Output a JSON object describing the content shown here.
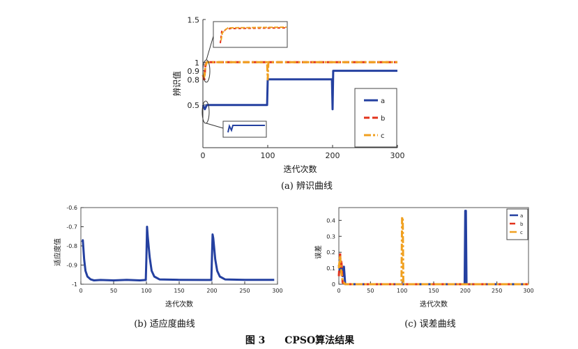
{
  "colors": {
    "a": "#2440a0",
    "b": "#e2331c",
    "c": "#f0a020"
  },
  "figure_caption": {
    "label": "图 3",
    "title": "CPSO算法结果"
  },
  "chart_data": [
    {
      "id": "a",
      "type": "line",
      "caption": "(a) 辨识曲线",
      "xlabel": "迭代次数",
      "ylabel": "辨识值",
      "xlim": [
        0,
        300
      ],
      "ylim": [
        0,
        1.5
      ],
      "xticks": [
        0,
        100,
        200,
        300
      ],
      "yticks": [
        0.5,
        0.8,
        0.9,
        1,
        1.5
      ],
      "ytick_labels": [
        "0.5",
        "0.8",
        "0.9",
        "1",
        "1.5"
      ],
      "legend": [
        "a",
        "b",
        "c"
      ],
      "legend_position": "bottom-right",
      "series": [
        {
          "name": "a",
          "x": [
            0,
            3,
            6,
            99,
            100,
            199,
            200,
            201,
            300
          ],
          "y": [
            0.5,
            0.45,
            0.5,
            0.5,
            0.8,
            0.8,
            0.45,
            0.9,
            0.9
          ]
        },
        {
          "name": "b",
          "x": [
            0,
            2,
            4,
            6,
            100,
            300
          ],
          "y": [
            0.85,
            0.8,
            0.97,
            1.0,
            1.0,
            1.0
          ]
        },
        {
          "name": "c",
          "x": [
            0,
            2,
            4,
            6,
            99,
            100,
            101,
            102,
            300
          ],
          "y": [
            0.85,
            0.83,
            0.95,
            1.0,
            1.0,
            0.8,
            1.0,
            1.0,
            1.0
          ]
        }
      ]
    },
    {
      "id": "b",
      "type": "line",
      "caption": "(b) 适应度曲线",
      "xlabel": "迭代次数",
      "ylabel": "适应度值",
      "xlim": [
        0,
        300
      ],
      "ylim": [
        -1,
        -0.6
      ],
      "xticks": [
        0,
        50,
        100,
        150,
        200,
        250,
        300
      ],
      "yticks": [
        -1,
        -0.9,
        -0.8,
        -0.7,
        -0.6
      ],
      "ytick_labels": [
        "-1",
        "-0.9",
        "-0.8",
        "-0.7",
        "-0.6"
      ],
      "series": [
        {
          "name": "a",
          "x": [
            2,
            3,
            5,
            7,
            10,
            15,
            20,
            30,
            50,
            70,
            90,
            99,
            100,
            101,
            102,
            105,
            108,
            112,
            120,
            150,
            190,
            199,
            200,
            201,
            202,
            205,
            208,
            212,
            220,
            250,
            295
          ],
          "y": [
            -0.78,
            -0.77,
            -0.87,
            -0.93,
            -0.96,
            -0.975,
            -0.98,
            -0.978,
            -0.98,
            -0.977,
            -0.98,
            -0.978,
            -0.86,
            -0.7,
            -0.75,
            -0.86,
            -0.93,
            -0.96,
            -0.975,
            -0.977,
            -0.978,
            -0.978,
            -0.86,
            -0.74,
            -0.76,
            -0.87,
            -0.93,
            -0.96,
            -0.975,
            -0.977,
            -0.977
          ]
        }
      ]
    },
    {
      "id": "c",
      "type": "line",
      "caption": "(c) 误差曲线",
      "xlabel": "迭代次数",
      "ylabel": "误差",
      "xlim": [
        0,
        300
      ],
      "ylim": [
        0,
        0.48
      ],
      "xticks": [
        0,
        50,
        100,
        150,
        200,
        250,
        300
      ],
      "yticks": [
        0,
        0.1,
        0.2,
        0.3,
        0.4
      ],
      "ytick_labels": [
        "0",
        "0.1",
        "0.2",
        "0.3",
        "0.4"
      ],
      "legend": [
        "a",
        "b",
        "c"
      ],
      "legend_position": "top-right",
      "series": [
        {
          "name": "a",
          "x": [
            0,
            2,
            4,
            6,
            8,
            10,
            199,
            200,
            201,
            202,
            300
          ],
          "y": [
            0.12,
            0.08,
            0.12,
            0.05,
            0.11,
            0,
            0,
            0.46,
            0.46,
            0,
            0
          ]
        },
        {
          "name": "b",
          "x": [
            0,
            2,
            3,
            4,
            6,
            10,
            300
          ],
          "y": [
            0.05,
            0.2,
            0.1,
            0.15,
            0.01,
            0,
            0
          ]
        },
        {
          "name": "c",
          "x": [
            0,
            2,
            4,
            6,
            10,
            99,
            100,
            101,
            102,
            300
          ],
          "y": [
            0.1,
            0.18,
            0.07,
            0.02,
            0,
            0,
            0.42,
            0.42,
            0,
            0
          ]
        }
      ]
    }
  ]
}
